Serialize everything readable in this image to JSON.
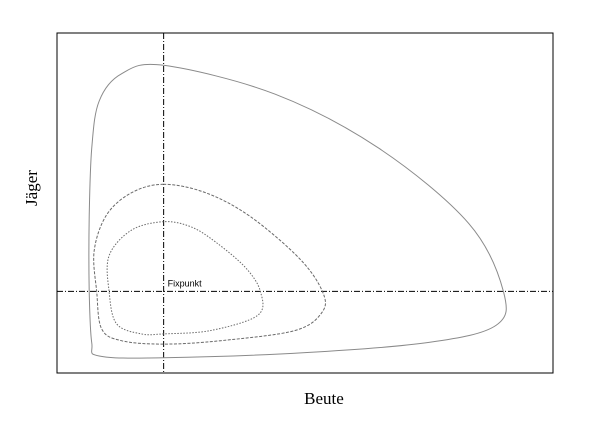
{
  "chart_data": {
    "type": "line",
    "title": "",
    "xlabel": "Beute",
    "ylabel": "Jäger",
    "xlim": [
      0,
      10
    ],
    "ylim": [
      0,
      10
    ],
    "grid": false,
    "ticks": false,
    "fixpoint": {
      "x": 2.15,
      "y": 2.4,
      "label": "Fixpunkt"
    },
    "series": [
      {
        "style": "solid",
        "color": "#8a8a8a",
        "points": [
          [
            2.15,
            9.05
          ],
          [
            1.3,
            8.8
          ],
          [
            0.85,
            8.0
          ],
          [
            0.7,
            6.6
          ],
          [
            0.65,
            4.6
          ],
          [
            0.65,
            2.4
          ],
          [
            0.7,
            0.9
          ],
          [
            0.85,
            0.5
          ],
          [
            2.15,
            0.45
          ],
          [
            5.0,
            0.6
          ],
          [
            7.5,
            0.9
          ],
          [
            8.85,
            1.4
          ],
          [
            9.0,
            2.4
          ],
          [
            8.3,
            4.4
          ],
          [
            6.5,
            6.6
          ],
          [
            4.4,
            8.2
          ],
          [
            2.15,
            9.05
          ]
        ]
      },
      {
        "style": "dashed",
        "color": "#6a6a6a",
        "points": [
          [
            2.15,
            5.55
          ],
          [
            1.5,
            5.3
          ],
          [
            1.0,
            4.65
          ],
          [
            0.75,
            3.6
          ],
          [
            0.8,
            2.4
          ],
          [
            0.9,
            1.3
          ],
          [
            1.3,
            0.95
          ],
          [
            2.15,
            0.85
          ],
          [
            3.3,
            0.95
          ],
          [
            4.8,
            1.25
          ],
          [
            5.35,
            1.8
          ],
          [
            5.35,
            2.4
          ],
          [
            4.9,
            3.35
          ],
          [
            3.9,
            4.6
          ],
          [
            3.0,
            5.3
          ],
          [
            2.15,
            5.55
          ]
        ]
      },
      {
        "style": "dotted",
        "color": "#6a6a6a",
        "points": [
          [
            2.15,
            4.45
          ],
          [
            1.5,
            4.2
          ],
          [
            1.05,
            3.45
          ],
          [
            1.05,
            2.4
          ],
          [
            1.2,
            1.45
          ],
          [
            1.7,
            1.15
          ],
          [
            2.15,
            1.15
          ],
          [
            3.1,
            1.25
          ],
          [
            4.05,
            1.7
          ],
          [
            4.1,
            2.4
          ],
          [
            3.8,
            3.1
          ],
          [
            3.2,
            3.85
          ],
          [
            2.7,
            4.3
          ],
          [
            2.15,
            4.45
          ]
        ]
      }
    ]
  }
}
